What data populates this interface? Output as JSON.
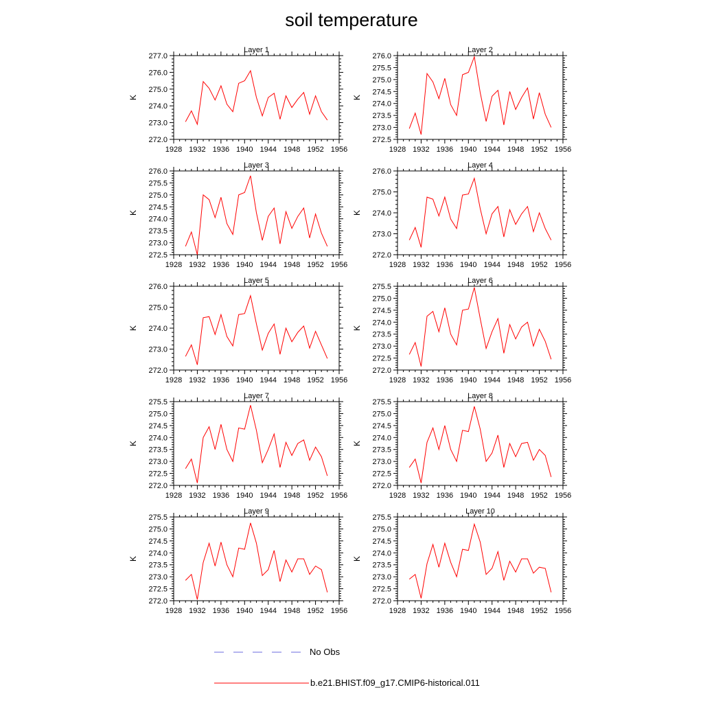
{
  "title": "soil temperature",
  "legend": [
    {
      "label": "No Obs",
      "color": "#6a6adf",
      "style": "dashed"
    },
    {
      "label": "b.e21.BHIST.f09_g17.CMIP6-historical.011",
      "color": "#ff0000",
      "style": "solid"
    }
  ],
  "chart_data": [
    {
      "type": "line",
      "title": "Layer 1",
      "xlabel": "",
      "ylabel": "K",
      "xlim": [
        1928,
        1956
      ],
      "ylim": [
        272,
        277
      ],
      "xticks": [
        "1928",
        "1932",
        "1936",
        "1940",
        "1944",
        "1948",
        "1952",
        "1956"
      ],
      "yticks": [
        "272.0",
        "273.0",
        "274.0",
        "275.0",
        "276.0",
        "277.0"
      ],
      "series": [
        {
          "color": "#ff0000",
          "x": [
            1930,
            1931,
            1932,
            1933,
            1934,
            1935,
            1936,
            1937,
            1938,
            1939,
            1940,
            1941,
            1942,
            1943,
            1944,
            1945,
            1946,
            1947,
            1948,
            1949,
            1950,
            1951,
            1952,
            1953,
            1954
          ],
          "values": [
            273.05,
            273.7,
            272.9,
            275.45,
            275.05,
            274.35,
            275.2,
            274.1,
            273.65,
            275.35,
            275.5,
            276.1,
            274.5,
            273.4,
            274.5,
            274.75,
            273.2,
            274.6,
            273.9,
            274.4,
            274.8,
            273.5,
            274.6,
            273.65,
            273.15
          ]
        }
      ]
    },
    {
      "type": "line",
      "title": "Layer 2",
      "xlabel": "",
      "ylabel": "K",
      "xlim": [
        1928,
        1956
      ],
      "ylim": [
        272.5,
        276
      ],
      "xticks": [
        "1928",
        "1932",
        "1936",
        "1940",
        "1944",
        "1948",
        "1952",
        "1956"
      ],
      "yticks": [
        "272.5",
        "273.0",
        "273.5",
        "274.0",
        "274.5",
        "275.0",
        "275.5",
        "276.0"
      ],
      "series": [
        {
          "color": "#ff0000",
          "x": [
            1930,
            1931,
            1932,
            1933,
            1934,
            1935,
            1936,
            1937,
            1938,
            1939,
            1940,
            1941,
            1942,
            1943,
            1944,
            1945,
            1946,
            1947,
            1948,
            1949,
            1950,
            1951,
            1952,
            1953,
            1954
          ],
          "values": [
            272.95,
            273.6,
            272.7,
            275.25,
            274.9,
            274.2,
            275.05,
            273.95,
            273.5,
            275.2,
            275.3,
            275.95,
            274.45,
            273.25,
            274.3,
            274.55,
            273.1,
            274.5,
            273.75,
            274.25,
            274.65,
            273.35,
            274.45,
            273.55,
            273.0
          ]
        }
      ]
    },
    {
      "type": "line",
      "title": "Layer 3",
      "xlabel": "",
      "ylabel": "K",
      "xlim": [
        1928,
        1956
      ],
      "ylim": [
        272.5,
        276
      ],
      "xticks": [
        "1928",
        "1932",
        "1936",
        "1940",
        "1944",
        "1948",
        "1952",
        "1956"
      ],
      "yticks": [
        "272.5",
        "273.0",
        "273.5",
        "274.0",
        "274.5",
        "275.0",
        "275.5",
        "276.0"
      ],
      "series": [
        {
          "color": "#ff0000",
          "x": [
            1930,
            1931,
            1932,
            1933,
            1934,
            1935,
            1936,
            1937,
            1938,
            1939,
            1940,
            1941,
            1942,
            1943,
            1944,
            1945,
            1946,
            1947,
            1948,
            1949,
            1950,
            1951,
            1952,
            1953,
            1954
          ],
          "values": [
            272.85,
            273.45,
            272.5,
            275.0,
            274.8,
            274.05,
            274.9,
            273.8,
            273.35,
            275.0,
            275.1,
            275.8,
            274.25,
            273.1,
            274.1,
            274.45,
            272.95,
            274.3,
            273.6,
            274.1,
            274.45,
            273.2,
            274.2,
            273.4,
            272.85
          ]
        }
      ]
    },
    {
      "type": "line",
      "title": "Layer 4",
      "xlabel": "",
      "ylabel": "K",
      "xlim": [
        1928,
        1956
      ],
      "ylim": [
        272,
        276
      ],
      "xticks": [
        "1928",
        "1932",
        "1936",
        "1940",
        "1944",
        "1948",
        "1952",
        "1956"
      ],
      "yticks": [
        "272.0",
        "273.0",
        "274.0",
        "275.0",
        "276.0"
      ],
      "series": [
        {
          "color": "#ff0000",
          "x": [
            1930,
            1931,
            1932,
            1933,
            1934,
            1935,
            1936,
            1937,
            1938,
            1939,
            1940,
            1941,
            1942,
            1943,
            1944,
            1945,
            1946,
            1947,
            1948,
            1949,
            1950,
            1951,
            1952,
            1953,
            1954
          ],
          "values": [
            272.7,
            273.3,
            272.35,
            274.75,
            274.65,
            273.85,
            274.75,
            273.7,
            273.25,
            274.85,
            274.9,
            275.65,
            274.2,
            273.0,
            273.95,
            274.3,
            272.85,
            274.15,
            273.45,
            273.95,
            274.3,
            273.1,
            274.0,
            273.25,
            272.7
          ]
        }
      ]
    },
    {
      "type": "line",
      "title": "Layer 5",
      "xlabel": "",
      "ylabel": "K",
      "xlim": [
        1928,
        1956
      ],
      "ylim": [
        272,
        276
      ],
      "xticks": [
        "1928",
        "1932",
        "1936",
        "1940",
        "1944",
        "1948",
        "1952",
        "1956"
      ],
      "yticks": [
        "272.0",
        "273.0",
        "274.0",
        "275.0",
        "276.0"
      ],
      "series": [
        {
          "color": "#ff0000",
          "x": [
            1930,
            1931,
            1932,
            1933,
            1934,
            1935,
            1936,
            1937,
            1938,
            1939,
            1940,
            1941,
            1942,
            1943,
            1944,
            1945,
            1946,
            1947,
            1948,
            1949,
            1950,
            1951,
            1952,
            1953,
            1954
          ],
          "values": [
            272.65,
            273.2,
            272.25,
            274.5,
            274.55,
            273.7,
            274.65,
            273.6,
            273.15,
            274.65,
            274.7,
            275.55,
            274.2,
            272.95,
            273.75,
            274.2,
            272.75,
            274.0,
            273.35,
            273.8,
            274.1,
            273.05,
            273.85,
            273.2,
            272.55
          ]
        }
      ]
    },
    {
      "type": "line",
      "title": "Layer 6",
      "xlabel": "",
      "ylabel": "K",
      "xlim": [
        1928,
        1956
      ],
      "ylim": [
        272,
        275.5
      ],
      "xticks": [
        "1928",
        "1932",
        "1936",
        "1940",
        "1944",
        "1948",
        "1952",
        "1956"
      ],
      "yticks": [
        "272.0",
        "272.5",
        "273.0",
        "273.5",
        "274.0",
        "274.5",
        "275.0",
        "275.5"
      ],
      "series": [
        {
          "color": "#ff0000",
          "x": [
            1930,
            1931,
            1932,
            1933,
            1934,
            1935,
            1936,
            1937,
            1938,
            1939,
            1940,
            1941,
            1942,
            1943,
            1944,
            1945,
            1946,
            1947,
            1948,
            1949,
            1950,
            1951,
            1952,
            1953,
            1954
          ],
          "values": [
            272.65,
            273.15,
            272.15,
            274.25,
            274.45,
            273.6,
            274.6,
            273.5,
            273.05,
            274.5,
            274.55,
            275.45,
            274.15,
            272.9,
            273.6,
            274.15,
            272.7,
            273.9,
            273.3,
            273.8,
            274.0,
            273.0,
            273.7,
            273.2,
            272.45
          ]
        }
      ]
    },
    {
      "type": "line",
      "title": "Layer 7",
      "xlabel": "",
      "ylabel": "K",
      "xlim": [
        1928,
        1956
      ],
      "ylim": [
        272,
        275.5
      ],
      "xticks": [
        "1928",
        "1932",
        "1936",
        "1940",
        "1944",
        "1948",
        "1952",
        "1956"
      ],
      "yticks": [
        "272.0",
        "272.5",
        "273.0",
        "273.5",
        "274.0",
        "274.5",
        "275.0",
        "275.5"
      ],
      "series": [
        {
          "color": "#ff0000",
          "x": [
            1930,
            1931,
            1932,
            1933,
            1934,
            1935,
            1936,
            1937,
            1938,
            1939,
            1940,
            1941,
            1942,
            1943,
            1944,
            1945,
            1946,
            1947,
            1948,
            1949,
            1950,
            1951,
            1952,
            1953,
            1954
          ],
          "values": [
            272.7,
            273.1,
            272.1,
            274.0,
            274.45,
            273.5,
            274.55,
            273.5,
            273.0,
            274.4,
            274.35,
            275.35,
            274.3,
            272.95,
            273.5,
            274.15,
            272.75,
            273.8,
            273.25,
            273.75,
            273.9,
            273.05,
            273.6,
            273.2,
            272.4
          ]
        }
      ]
    },
    {
      "type": "line",
      "title": "Layer 8",
      "xlabel": "",
      "ylabel": "K",
      "xlim": [
        1928,
        1956
      ],
      "ylim": [
        272,
        275.5
      ],
      "xticks": [
        "1928",
        "1932",
        "1936",
        "1940",
        "1944",
        "1948",
        "1952",
        "1956"
      ],
      "yticks": [
        "272.0",
        "272.5",
        "273.0",
        "273.5",
        "274.0",
        "274.5",
        "275.0",
        "275.5"
      ],
      "series": [
        {
          "color": "#ff0000",
          "x": [
            1930,
            1931,
            1932,
            1933,
            1934,
            1935,
            1936,
            1937,
            1938,
            1939,
            1940,
            1941,
            1942,
            1943,
            1944,
            1945,
            1946,
            1947,
            1948,
            1949,
            1950,
            1951,
            1952,
            1953,
            1954
          ],
          "values": [
            272.75,
            273.1,
            272.1,
            273.8,
            274.4,
            273.5,
            274.5,
            273.5,
            273.0,
            274.3,
            274.25,
            275.3,
            274.35,
            273.0,
            273.35,
            274.1,
            272.75,
            273.75,
            273.2,
            273.75,
            273.8,
            273.05,
            273.5,
            273.25,
            272.35
          ]
        }
      ]
    },
    {
      "type": "line",
      "title": "Layer 9",
      "xlabel": "",
      "ylabel": "K",
      "xlim": [
        1928,
        1956
      ],
      "ylim": [
        272,
        275.5
      ],
      "xticks": [
        "1928",
        "1932",
        "1936",
        "1940",
        "1944",
        "1948",
        "1952",
        "1956"
      ],
      "yticks": [
        "272.0",
        "272.5",
        "273.0",
        "273.5",
        "274.0",
        "274.5",
        "275.0",
        "275.5"
      ],
      "series": [
        {
          "color": "#ff0000",
          "x": [
            1930,
            1931,
            1932,
            1933,
            1934,
            1935,
            1936,
            1937,
            1938,
            1939,
            1940,
            1941,
            1942,
            1943,
            1944,
            1945,
            1946,
            1947,
            1948,
            1949,
            1950,
            1951,
            1952,
            1953,
            1954
          ],
          "values": [
            272.85,
            273.1,
            272.05,
            273.6,
            274.4,
            273.45,
            274.45,
            273.5,
            273.0,
            274.2,
            274.15,
            275.25,
            274.4,
            273.05,
            273.3,
            274.1,
            272.8,
            273.7,
            273.2,
            273.75,
            273.75,
            273.1,
            273.45,
            273.3,
            272.35
          ]
        }
      ]
    },
    {
      "type": "line",
      "title": "Layer 10",
      "xlabel": "",
      "ylabel": "K",
      "xlim": [
        1928,
        1956
      ],
      "ylim": [
        272,
        275.5
      ],
      "xticks": [
        "1928",
        "1932",
        "1936",
        "1940",
        "1944",
        "1948",
        "1952",
        "1956"
      ],
      "yticks": [
        "272.0",
        "272.5",
        "273.0",
        "273.5",
        "274.0",
        "274.5",
        "275.0",
        "275.5"
      ],
      "series": [
        {
          "color": "#ff0000",
          "x": [
            1930,
            1931,
            1932,
            1933,
            1934,
            1935,
            1936,
            1937,
            1938,
            1939,
            1940,
            1941,
            1942,
            1943,
            1944,
            1945,
            1946,
            1947,
            1948,
            1949,
            1950,
            1951,
            1952,
            1953,
            1954
          ],
          "values": [
            272.9,
            273.1,
            272.1,
            273.55,
            274.35,
            273.4,
            274.4,
            273.6,
            273.0,
            274.15,
            274.1,
            275.2,
            274.45,
            273.1,
            273.35,
            274.05,
            272.85,
            273.65,
            273.2,
            273.75,
            273.75,
            273.15,
            273.4,
            273.35,
            272.35
          ]
        }
      ]
    }
  ]
}
